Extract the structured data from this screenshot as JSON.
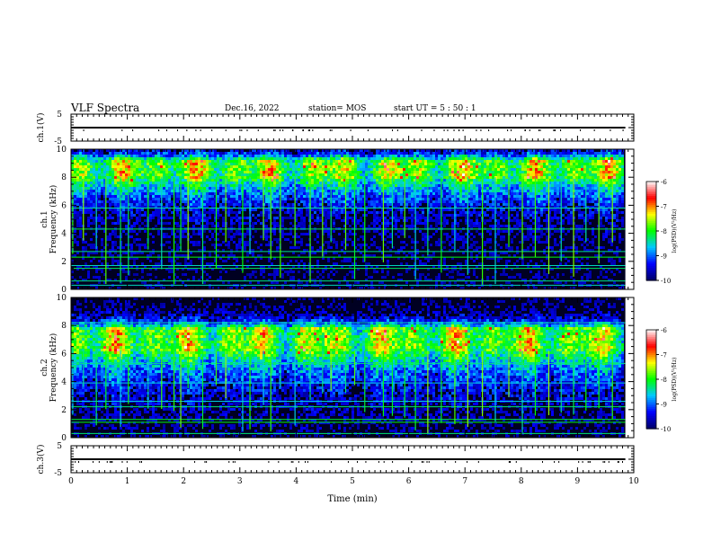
{
  "header": {
    "title": "VLF Spectra",
    "date": "Dec.16, 2022",
    "station": "station= MOS",
    "start": "start  UT =   5 : 50 : 1"
  },
  "chart_data": {
    "type": "heatmap",
    "xlabel": "Time  (min)",
    "xlim": [
      0,
      10
    ],
    "x_ticks": [
      "0",
      "1",
      "2",
      "3",
      "4",
      "5",
      "6",
      "7",
      "8",
      "9",
      "10"
    ],
    "panels": [
      {
        "id": "ch1-voltage",
        "type": "line",
        "ylabel": "ch.1(V)",
        "ylim": [
          -5,
          5
        ],
        "y_ticks": [
          "5",
          "-5"
        ],
        "series": [
          {
            "x": [
              0,
              9.85
            ],
            "y": [
              0,
              0
            ]
          }
        ]
      },
      {
        "id": "ch1-spectrogram",
        "type": "heatmap",
        "ylabel_line1": "ch.1",
        "ylabel_line2": "Frequency  (kHz)",
        "ylim": [
          0,
          10
        ],
        "y_ticks": [
          "0",
          "2",
          "4",
          "6",
          "8",
          "10"
        ],
        "data_xlim": [
          0,
          9.85
        ],
        "peak_band_khz": [
          8.0,
          9.2
        ],
        "spread_khz": 1.6,
        "line_freqs_khz": [
          0.3,
          0.6,
          1.5,
          1.7,
          2.3,
          2.7,
          4.3,
          5.8
        ]
      },
      {
        "id": "ch2-spectrogram",
        "type": "heatmap",
        "ylabel_line1": "ch.2",
        "ylabel_line2": "Frequency  (kHz)",
        "ylim": [
          0,
          10
        ],
        "y_ticks": [
          "0",
          "2",
          "4",
          "6",
          "8",
          "10"
        ],
        "data_xlim": [
          0,
          9.85
        ],
        "peak_band_khz": [
          6.2,
          7.8
        ],
        "spread_khz": 2.0,
        "line_freqs_khz": [
          0.3,
          1.1,
          1.3,
          2.2,
          2.6,
          3.9,
          5.3,
          8.2
        ]
      },
      {
        "id": "ch3-voltage",
        "type": "line",
        "ylabel": "ch.3(V)",
        "ylim": [
          -5,
          5
        ],
        "y_ticks": [
          "5",
          "-5"
        ],
        "series": [
          {
            "x": [
              0,
              9.85
            ],
            "y": [
              0,
              0
            ]
          }
        ]
      }
    ],
    "spikes_min": [
      0.03,
      0.22,
      0.45,
      0.62,
      0.88,
      1.02,
      1.37,
      1.61,
      1.83,
      1.95,
      2.08,
      2.34,
      2.58,
      2.75,
      3.05,
      3.18,
      3.42,
      3.55,
      3.72,
      3.98,
      4.25,
      4.47,
      4.62,
      4.88,
      5.04,
      5.22,
      5.55,
      5.71,
      5.93,
      6.12,
      6.34,
      6.58,
      6.82,
      7.05,
      7.31,
      7.54,
      7.78,
      8.02,
      8.25,
      8.49,
      8.71,
      8.93,
      9.15,
      9.38,
      9.62
    ],
    "colorbar": {
      "label": "log(PSD)(V²/Hz)",
      "range": [
        -10,
        -6
      ],
      "ticks": [
        "-6",
        "-7",
        "-8",
        "-9",
        "-10"
      ],
      "colors": [
        "#000066",
        "#0000ff",
        "#00c8ff",
        "#00ff00",
        "#ffff00",
        "#ff0000",
        "#ffffff"
      ]
    }
  }
}
